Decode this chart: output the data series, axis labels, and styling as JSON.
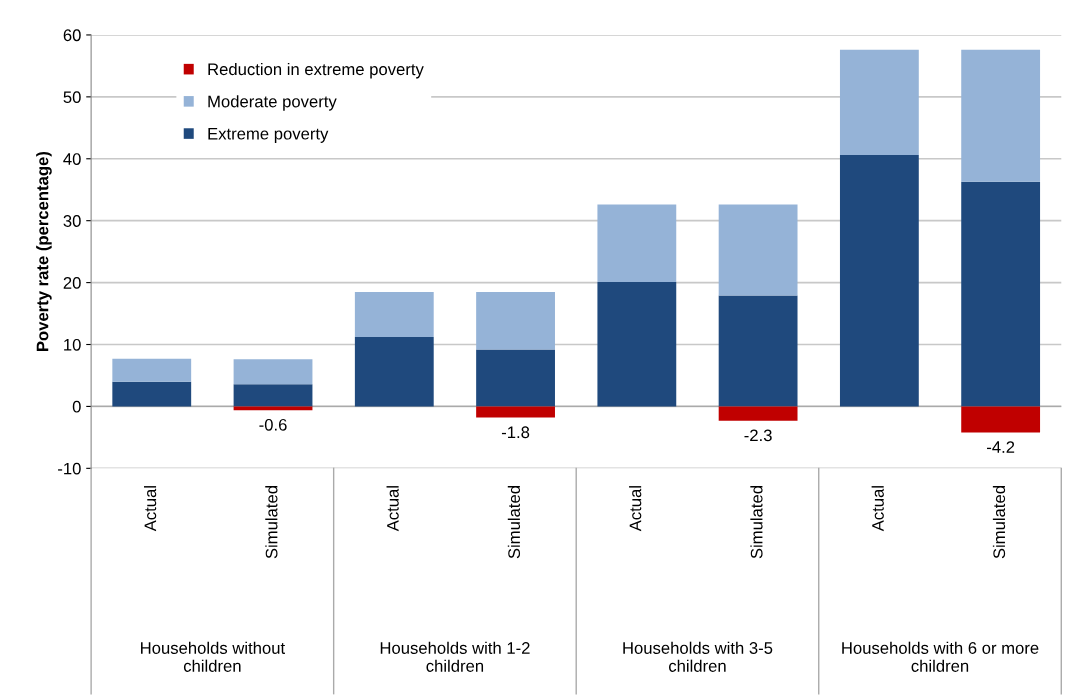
{
  "chart_data": {
    "type": "bar",
    "stacked": true,
    "ylabel": "Poverty rate (percentage)",
    "categories": [
      "Actual",
      "Simulated",
      "Actual",
      "Simulated",
      "Actual",
      "Simulated",
      "Actual",
      "Simulated"
    ],
    "series": [
      {
        "name": "Extreme poverty",
        "color": "#1f497d",
        "values": [
          4.0,
          3.6,
          11.2,
          9.2,
          20.1,
          17.9,
          40.6,
          36.3
        ]
      },
      {
        "name": "Moderate poverty",
        "color": "#95b3d7",
        "values": [
          3.7,
          4.0,
          7.3,
          9.3,
          12.5,
          14.7,
          17.0,
          21.3
        ]
      },
      {
        "name": "Reduction in extreme poverty",
        "color": "#c00000",
        "values": [
          null,
          -0.6,
          null,
          -1.8,
          null,
          -2.3,
          null,
          -4.2
        ],
        "value_labels": [
          null,
          "-0.6",
          null,
          "-1.8",
          null,
          "-2.3",
          null,
          "-4.2"
        ]
      }
    ],
    "annotations": [
      "Households without\nchildren",
      "Households with 1-2\nchildren",
      "Households with 3-5\nchildren",
      "Households with 6 or more\nchildren"
    ],
    "ylim": [
      -10,
      60
    ],
    "yticks": [
      -10,
      0,
      10,
      20,
      30,
      40,
      50,
      60
    ],
    "grid": "y",
    "legend": "top left"
  }
}
